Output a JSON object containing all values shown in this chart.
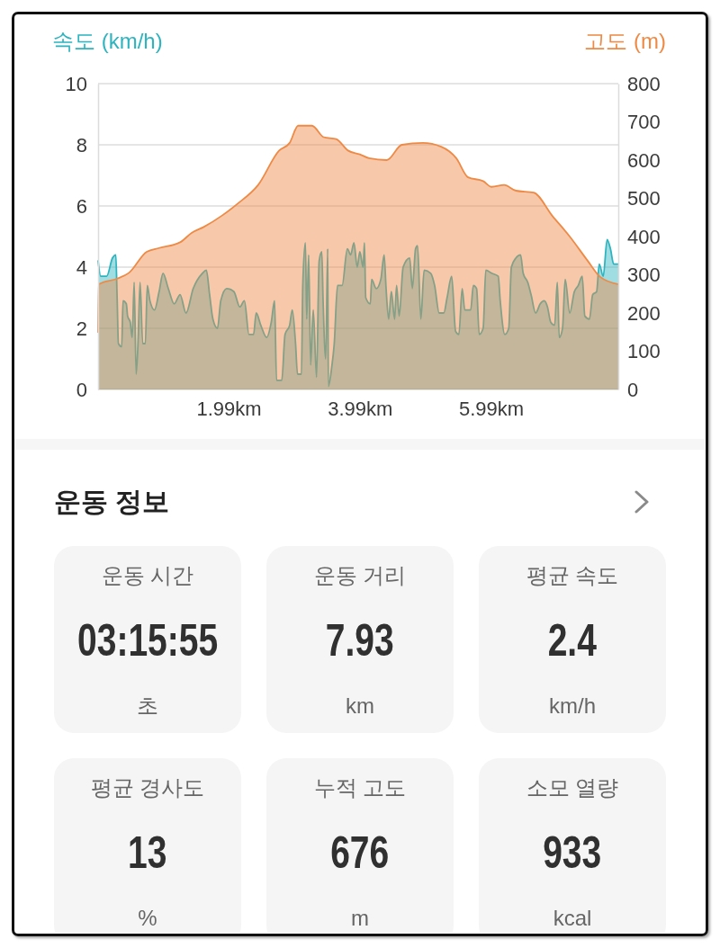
{
  "chart_data": [
    {
      "type": "area",
      "ylabel": "속도 (km/h)",
      "y2label": "고도 (m)",
      "xlim": [
        0,
        7.93
      ],
      "xticks": [
        {
          "value": 1.99,
          "label": "1.99km"
        },
        {
          "value": 3.99,
          "label": "3.99km"
        },
        {
          "value": 5.99,
          "label": "5.99km"
        }
      ],
      "ylim": [
        0,
        10
      ],
      "yticks": [
        0,
        2,
        4,
        6,
        8,
        10
      ],
      "y2lim": [
        0,
        800
      ],
      "y2ticks": [
        0,
        100,
        200,
        300,
        400,
        500,
        600,
        700,
        800
      ],
      "grid": "y",
      "series": [
        {
          "color": "#2db4bf",
          "x": [
            0,
            0.04,
            0.13,
            0.22,
            0.27,
            0.29,
            0.31,
            0.36,
            0.38,
            0.43,
            0.45,
            0.49,
            0.52,
            0.55,
            0.58,
            0.61,
            0.64,
            0.68,
            0.72,
            0.75,
            0.79,
            0.86,
            0.93,
            0.99,
            1.07,
            1.16,
            1.25,
            1.34,
            1.45,
            1.59,
            1.65,
            1.7,
            1.75,
            1.82,
            1.87,
            1.96,
            2.07,
            2.16,
            2.23,
            2.3,
            2.37,
            2.41,
            2.48,
            2.57,
            2.64,
            2.69,
            2.72,
            2.8,
            2.85,
            2.92,
            2.96,
            3.01,
            3.04,
            3.1,
            3.12,
            3.16,
            3.18,
            3.21,
            3.24,
            3.28,
            3.33,
            3.37,
            3.41,
            3.43,
            3.47,
            3.5,
            3.51,
            3.56,
            3.6,
            3.65,
            3.72,
            3.8,
            3.85,
            3.9,
            3.95,
            3.99,
            4.04,
            4.06,
            4.08,
            4.15,
            4.17,
            4.24,
            4.31,
            4.36,
            4.39,
            4.43,
            4.47,
            4.52,
            4.55,
            4.59,
            4.65,
            4.75,
            4.79,
            4.84,
            4.87,
            4.92,
            4.97,
            5.07,
            5.13,
            5.2,
            5.27,
            5.32,
            5.39,
            5.45,
            5.5,
            5.55,
            5.59,
            5.68,
            5.72,
            5.77,
            5.81,
            5.87,
            5.91,
            6.0,
            6.1,
            6.13,
            6.2,
            6.26,
            6.3,
            6.37,
            6.44,
            6.48,
            6.55,
            6.6,
            6.67,
            6.74,
            6.8,
            6.85,
            6.9,
            6.96,
            7.0,
            7.03,
            7.08,
            7.12,
            7.19,
            7.26,
            7.32,
            7.38,
            7.42,
            7.49,
            7.54,
            7.6,
            7.64,
            7.7,
            7.76,
            7.81,
            7.86,
            7.93
          ],
          "values": [
            4.2,
            3.7,
            3.7,
            4.3,
            4.4,
            3.0,
            1.5,
            1.4,
            2.9,
            2.8,
            2.4,
            2.2,
            1.7,
            3.5,
            0.5,
            1.6,
            3.5,
            1.5,
            1.5,
            3.4,
            2.9,
            2.6,
            3.2,
            3.8,
            3.3,
            2.8,
            3.1,
            2.5,
            3.3,
            3.8,
            3.9,
            3.1,
            2.3,
            2.0,
            2.9,
            3.3,
            3.2,
            2.7,
            2.9,
            1.8,
            1.8,
            2.5,
            2.1,
            1.7,
            2.2,
            2.9,
            0.3,
            0.3,
            1.8,
            2.1,
            2.6,
            1.5,
            0.5,
            0.5,
            3.4,
            4.8,
            2.3,
            4.4,
            0.8,
            2.6,
            0.4,
            4.2,
            4.5,
            2.9,
            1.0,
            4.6,
            0.1,
            0.7,
            1.5,
            3.4,
            3.4,
            4.6,
            4.4,
            4.8,
            4.0,
            4.5,
            4.0,
            4.8,
            3.0,
            2.8,
            3.6,
            3.3,
            3.6,
            4.4,
            3.3,
            2.3,
            3.2,
            2.3,
            3.4,
            2.4,
            4.0,
            4.3,
            3.3,
            4.6,
            4.7,
            2.3,
            3.9,
            3.8,
            3.4,
            2.5,
            2.5,
            3.0,
            3.7,
            1.9,
            1.8,
            3.3,
            2.6,
            2.6,
            3.4,
            3.3,
            1.8,
            2.0,
            3.9,
            3.8,
            3.7,
            2.9,
            1.8,
            2.0,
            4.0,
            4.3,
            4.4,
            3.8,
            3.5,
            3.1,
            2.5,
            2.8,
            2.9,
            2.7,
            2.2,
            2.1,
            3.5,
            1.7,
            2.0,
            3.6,
            2.5,
            3.2,
            3.4,
            3.7,
            2.4,
            2.3,
            3.1,
            3.2,
            4.1,
            3.7,
            4.9,
            4.6,
            4.1,
            4.1
          ]
        },
        {
          "color": "#ee8a45",
          "axis": "y2",
          "x": [
            0,
            0.01,
            0.29,
            0.47,
            0.74,
            0.93,
            1.25,
            1.43,
            1.61,
            1.89,
            2.12,
            2.44,
            2.76,
            2.92,
            3.05,
            3.26,
            3.44,
            3.63,
            3.81,
            3.99,
            4.13,
            4.4,
            4.63,
            4.95,
            5.23,
            5.46,
            5.64,
            5.87,
            6.0,
            6.19,
            6.37,
            6.64,
            6.92,
            7.19,
            7.47,
            7.65,
            7.93
          ],
          "values": [
            150,
            275,
            290,
            305,
            360,
            370,
            385,
            410,
            425,
            455,
            485,
            535,
            625,
            645,
            690,
            690,
            660,
            655,
            625,
            615,
            605,
            600,
            640,
            645,
            635,
            605,
            555,
            545,
            530,
            535,
            520,
            515,
            455,
            400,
            335,
            295,
            275
          ]
        }
      ]
    },
    {
      "type": "other",
      "title": "운동 정보",
      "annotations": [
        "운동 시간",
        "03:15:55",
        "초",
        "운동 거리",
        "7.93",
        "km",
        "평균 속도",
        "2.4",
        "km/h",
        "평균 경사도",
        "13",
        "%",
        "누적 고도",
        "676",
        "m",
        "소모 열량",
        "933",
        "kcal"
      ]
    }
  ]
}
